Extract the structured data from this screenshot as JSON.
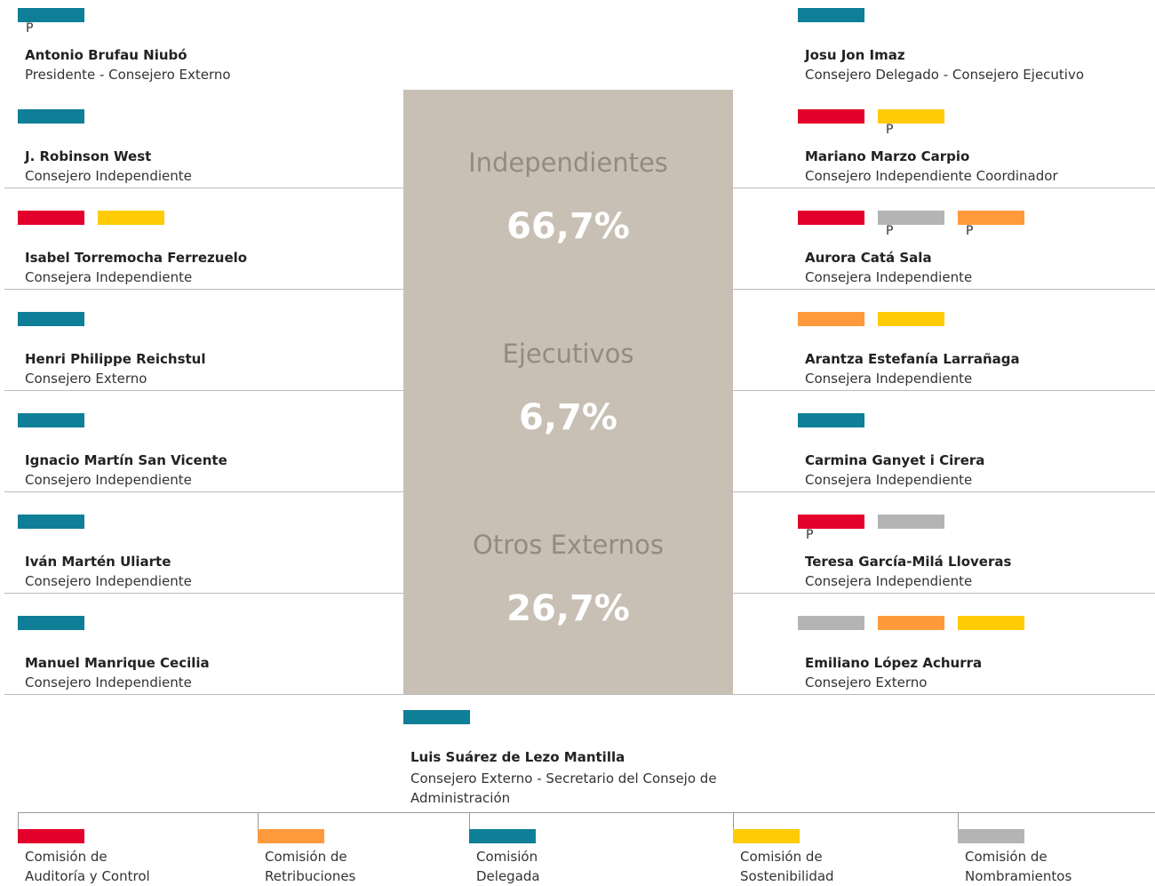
{
  "left": [
    {
      "name": "Antonio Brufau Niubó",
      "role": "Presidente - Consejero Externo",
      "badges": [
        {
          "color": "#0e7f96",
          "label": "P"
        }
      ]
    },
    {
      "name": "J. Robinson West",
      "role": "Consejero Independiente",
      "badges": [
        {
          "color": "#0e7f96"
        }
      ]
    },
    {
      "name": "Isabel Torremocha Ferrezuelo",
      "role": "Consejera Independiente",
      "badges": [
        {
          "color": "#e3002b"
        },
        {
          "color": "#ffcb05"
        }
      ]
    },
    {
      "name": "Henri Philippe Reichstul",
      "role": "Consejero Externo",
      "badges": [
        {
          "color": "#0e7f96"
        }
      ]
    },
    {
      "name": "Ignacio Martín San Vicente",
      "role": "Consejero Independiente",
      "badges": [
        {
          "color": "#0e7f96"
        }
      ]
    },
    {
      "name": "Iván Martén Uliarte",
      "role": "Consejero Independiente",
      "badges": [
        {
          "color": "#0e7f96"
        }
      ]
    },
    {
      "name": "Manuel Manrique Cecilia",
      "role": "Consejero Independiente",
      "badges": [
        {
          "color": "#0e7f96"
        }
      ]
    }
  ],
  "right": [
    {
      "name": "Josu Jon Imaz",
      "role": "Consejero Delegado - Consejero Ejecutivo",
      "badges": [
        {
          "color": "#0e7f96"
        }
      ]
    },
    {
      "name": "Mariano Marzo Carpio",
      "role": "Consejero Independiente Coordinador",
      "badges": [
        {
          "color": "#e3002b"
        },
        {
          "color": "#ffcb05",
          "label": "P"
        }
      ]
    },
    {
      "name": "Aurora Catá Sala",
      "role": "Consejera Independiente",
      "badges": [
        {
          "color": "#e3002b"
        },
        {
          "color": "#b4b4b4",
          "label": "P"
        },
        {
          "color": "#ff9a3c",
          "label": "P"
        }
      ]
    },
    {
      "name": "Arantza Estefanía Larrañaga",
      "role": "Consejera Independiente",
      "badges": [
        {
          "color": "#ff9a3c"
        },
        {
          "color": "#ffcb05"
        }
      ]
    },
    {
      "name": "Carmina Ganyet i Cirera",
      "role": "Consejera Independiente",
      "badges": [
        {
          "color": "#0e7f96"
        }
      ]
    },
    {
      "name": "Teresa García-Milá Lloveras",
      "role": "Consejera Independiente",
      "badges": [
        {
          "color": "#e3002b",
          "label": "P"
        },
        {
          "color": "#b4b4b4"
        }
      ]
    },
    {
      "name": "Emiliano López Achurra",
      "role": "Consejero Externo",
      "badges": [
        {
          "color": "#b4b4b4"
        },
        {
          "color": "#ff9a3c"
        },
        {
          "color": "#ffcb05"
        }
      ]
    }
  ],
  "center": [
    {
      "category": "Independientes",
      "value": "66,7%"
    },
    {
      "category": "Ejecutivos",
      "value": "6,7%"
    },
    {
      "category": "Otros Externos",
      "value": "26,7%"
    }
  ],
  "secretary": {
    "name": "Luis Suárez de Lezo Mantilla",
    "role": "Consejero Externo - Secretario del Consejo de Administración",
    "badges": [
      {
        "color": "#0e7f96"
      }
    ]
  },
  "legend": [
    {
      "lines": [
        "Comisión de",
        "Auditoría y Control"
      ],
      "color": "#e3002b"
    },
    {
      "lines": [
        "Comisión de",
        "Retribuciones"
      ],
      "color": "#ff9a3c"
    },
    {
      "lines": [
        "Comisión",
        "Delegada"
      ],
      "color": "#0e7f96"
    },
    {
      "lines": [
        "Comisión de",
        "Sostenibilidad"
      ],
      "color": "#ffcb05"
    },
    {
      "lines": [
        "Comisión de",
        "Nombramientos"
      ],
      "color": "#b4b4b4"
    }
  ]
}
